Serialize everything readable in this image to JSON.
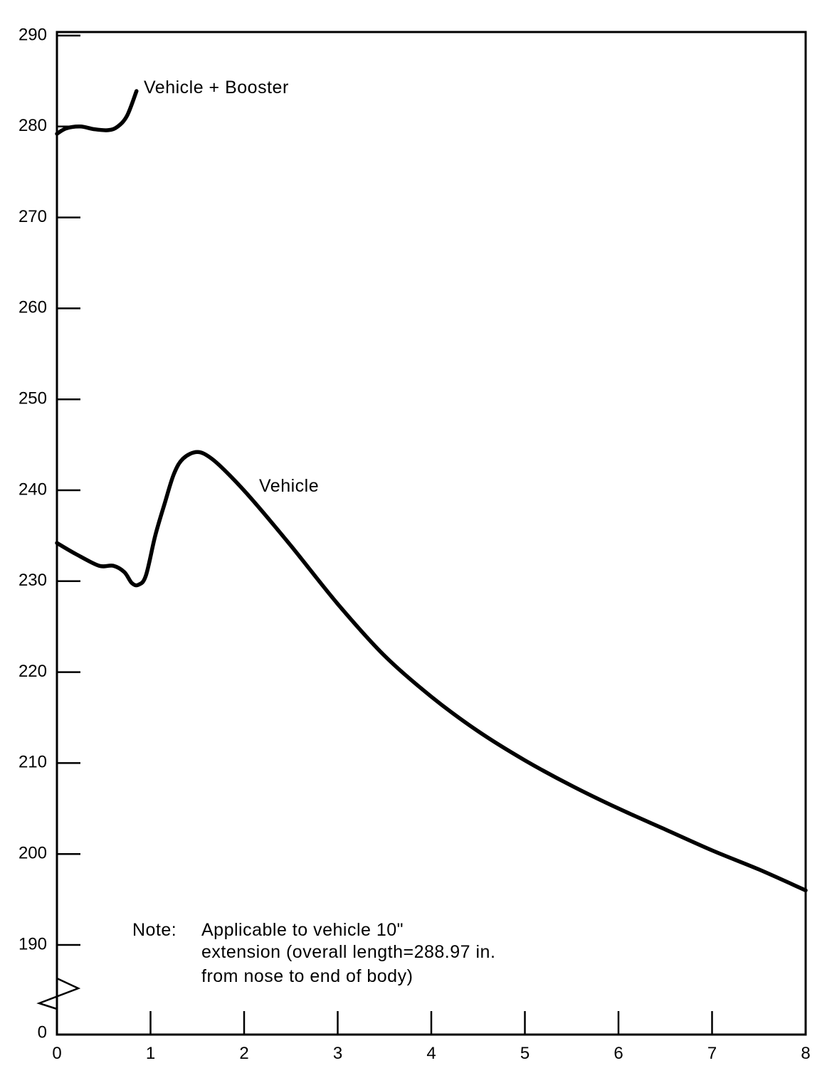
{
  "chart_data": {
    "type": "line",
    "title": "",
    "xlabel": "",
    "ylabel": "",
    "xlim": [
      0,
      8
    ],
    "ylim": [
      190,
      290
    ],
    "y_axis_break": {
      "lower_label": "0",
      "below": 190
    },
    "x_ticks": [
      "0",
      "1",
      "2",
      "3",
      "4",
      "5",
      "6",
      "7",
      "8"
    ],
    "y_ticks": [
      "290",
      "280",
      "270",
      "260",
      "250",
      "240",
      "230",
      "220",
      "210",
      "200",
      "190"
    ],
    "grid": false,
    "series": [
      {
        "name": "Vehicle + Booster",
        "points": [
          [
            0.0,
            279.2
          ],
          [
            0.1,
            279.8
          ],
          [
            0.25,
            280.0
          ],
          [
            0.4,
            279.7
          ],
          [
            0.55,
            279.6
          ],
          [
            0.65,
            280.0
          ],
          [
            0.75,
            281.2
          ],
          [
            0.85,
            283.9
          ]
        ]
      },
      {
        "name": "Vehicle",
        "points": [
          [
            0.0,
            234.2
          ],
          [
            0.2,
            233.0
          ],
          [
            0.45,
            231.7
          ],
          [
            0.6,
            231.7
          ],
          [
            0.72,
            231.0
          ],
          [
            0.8,
            229.8
          ],
          [
            0.87,
            229.6
          ],
          [
            0.95,
            230.6
          ],
          [
            1.05,
            235.0
          ],
          [
            1.15,
            238.5
          ],
          [
            1.25,
            241.8
          ],
          [
            1.35,
            243.5
          ],
          [
            1.5,
            244.2
          ],
          [
            1.65,
            243.5
          ],
          [
            1.85,
            241.6
          ],
          [
            2.1,
            238.8
          ],
          [
            2.5,
            233.9
          ],
          [
            3.0,
            227.5
          ],
          [
            3.5,
            221.8
          ],
          [
            4.0,
            217.3
          ],
          [
            4.5,
            213.5
          ],
          [
            5.0,
            210.3
          ],
          [
            5.5,
            207.5
          ],
          [
            6.0,
            205.0
          ],
          [
            6.5,
            202.7
          ],
          [
            7.0,
            200.4
          ],
          [
            7.5,
            198.3
          ],
          [
            8.0,
            196.0
          ]
        ]
      }
    ],
    "annotations": {
      "booster_label": "Vehicle + Booster",
      "vehicle_label": "Vehicle",
      "note_prefix": "Note:",
      "note_line1": "Applicable to vehicle 10\"",
      "note_line2": "extension (overall length=288.97 in.",
      "note_line3": "from nose to end of body)"
    }
  }
}
